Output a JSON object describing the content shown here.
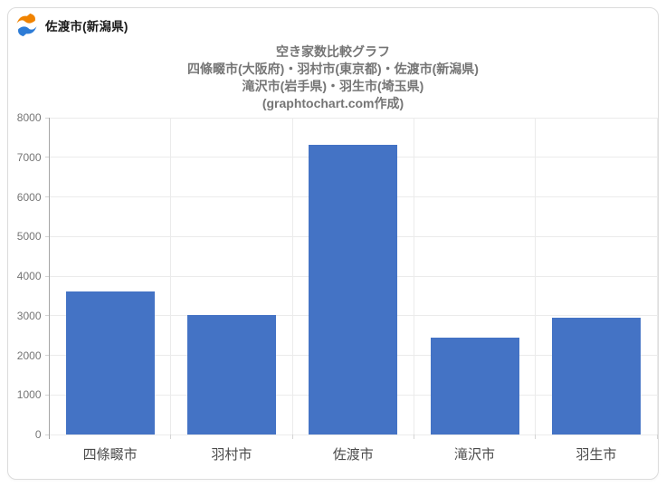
{
  "page": {
    "background": "#ffffff",
    "card_border_color": "#dcdcdc"
  },
  "header": {
    "site_label": "佐渡市(新潟県)",
    "logo": {
      "name": "graphtochart-logo",
      "orange": "#f08300",
      "blue": "#2e7cd6"
    }
  },
  "chart_data": {
    "type": "bar",
    "title_lines": [
      "空き家数比較グラフ",
      "四條畷市(大阪府)・羽村市(東京都)・佐渡市(新潟県)",
      "滝沢市(岩手県)・羽生市(埼玉県)",
      "(graphtochart.com作成)"
    ],
    "title": "空き家数比較グラフ 四條畷市(大阪府)・羽村市(東京都)・佐渡市(新潟県) 滝沢市(岩手県)・羽生市(埼玉県) (graphtochart.com作成)",
    "categories": [
      "四條畷市",
      "羽村市",
      "佐渡市",
      "滝沢市",
      "羽生市"
    ],
    "values": [
      3620,
      3010,
      7310,
      2450,
      2940
    ],
    "xlabel": "",
    "ylabel": "",
    "ylim": [
      0,
      8000
    ],
    "ytick_step": 1000,
    "yticks": [
      "0",
      "1000",
      "2000",
      "3000",
      "4000",
      "5000",
      "6000",
      "7000",
      "8000"
    ],
    "grid": true,
    "legend": false,
    "bar_color": "#4473c5",
    "grid_color": "#ebebeb",
    "tick_mark_color": "#d4d4d4",
    "axis_line_color": "#a6a6a6",
    "title_color": "#757575",
    "ytick_label_color": "#757575",
    "category_label_color": "#4b4b4b"
  }
}
